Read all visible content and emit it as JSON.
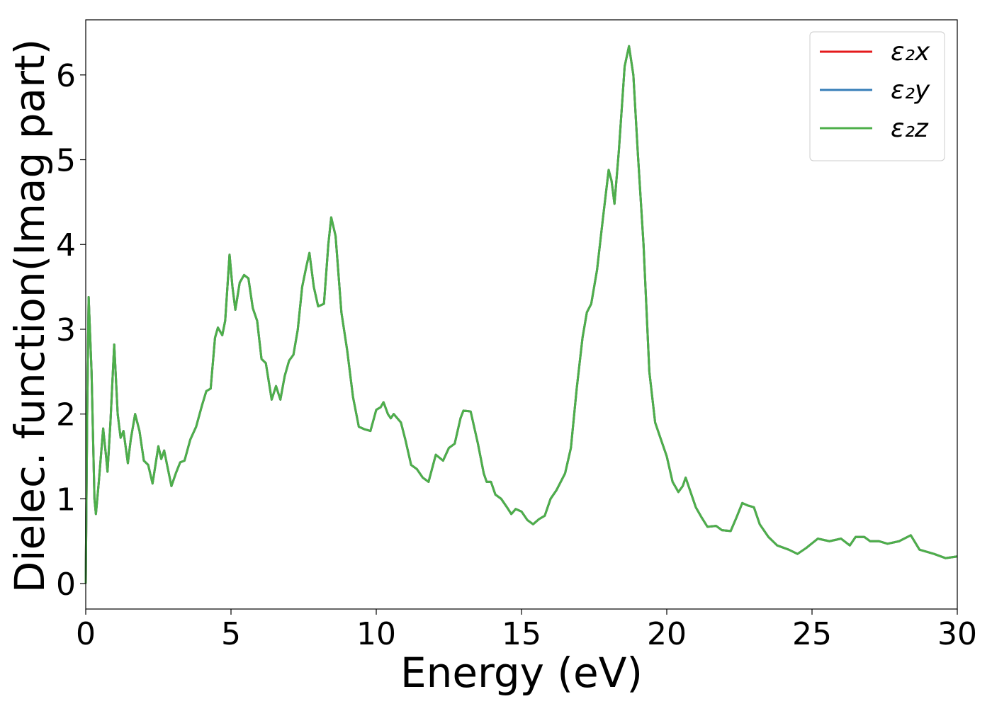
{
  "chart_data": {
    "type": "line",
    "xlabel": "Energy (eV)",
    "ylabel": "Dielec. function(Imag part)",
    "x": [
      0,
      0.05,
      0.1,
      0.2,
      0.3,
      0.35,
      0.45,
      0.6,
      0.7,
      0.75,
      0.85,
      0.98,
      1.1,
      1.2,
      1.3,
      1.45,
      1.55,
      1.7,
      1.85,
      2.0,
      2.15,
      2.3,
      2.4,
      2.5,
      2.6,
      2.7,
      2.8,
      2.95,
      3.1,
      3.25,
      3.4,
      3.6,
      3.8,
      4.0,
      4.15,
      4.3,
      4.45,
      4.55,
      4.7,
      4.8,
      4.95,
      5.05,
      5.15,
      5.3,
      5.45,
      5.6,
      5.75,
      5.9,
      6.05,
      6.2,
      6.4,
      6.55,
      6.7,
      6.85,
      7.0,
      7.15,
      7.3,
      7.45,
      7.6,
      7.7,
      7.85,
      8.0,
      8.2,
      8.35,
      8.45,
      8.6,
      8.8,
      9.0,
      9.2,
      9.4,
      9.6,
      9.8,
      10.0,
      10.15,
      10.25,
      10.4,
      10.5,
      10.6,
      10.85,
      11.0,
      11.2,
      11.4,
      11.6,
      11.8,
      12.05,
      12.3,
      12.5,
      12.7,
      12.9,
      13.0,
      13.25,
      13.5,
      13.7,
      13.8,
      13.95,
      14.1,
      14.3,
      14.5,
      14.65,
      14.8,
      15.0,
      15.2,
      15.4,
      15.6,
      15.8,
      16.0,
      16.2,
      16.5,
      16.7,
      16.9,
      17.1,
      17.25,
      17.4,
      17.6,
      17.8,
      18.0,
      18.1,
      18.2,
      18.35,
      18.55,
      18.7,
      18.85,
      19.0,
      19.2,
      19.4,
      19.6,
      19.8,
      20.0,
      20.2,
      20.4,
      20.55,
      20.65,
      20.8,
      21.0,
      21.2,
      21.4,
      21.7,
      21.9,
      22.2,
      22.4,
      22.6,
      22.8,
      23.0,
      23.2,
      23.5,
      23.8,
      24.2,
      24.5,
      24.8,
      25.2,
      25.6,
      26.0,
      26.3,
      26.5,
      26.8,
      27.0,
      27.3,
      27.6,
      28.0,
      28.4,
      28.7,
      29.2,
      29.6,
      30.0
    ],
    "series": [
      {
        "name": "ε₂x",
        "color": "#e41a1c",
        "values": [
          0,
          2.0,
          3.38,
          2.5,
          1.0,
          0.82,
          1.2,
          1.83,
          1.5,
          1.32,
          1.9,
          2.82,
          2.0,
          1.72,
          1.8,
          1.42,
          1.7,
          2.0,
          1.8,
          1.45,
          1.4,
          1.18,
          1.4,
          1.62,
          1.47,
          1.57,
          1.4,
          1.15,
          1.3,
          1.43,
          1.45,
          1.7,
          1.85,
          2.1,
          2.27,
          2.3,
          2.9,
          3.02,
          2.93,
          3.1,
          3.88,
          3.5,
          3.23,
          3.55,
          3.64,
          3.6,
          3.25,
          3.1,
          2.65,
          2.6,
          2.17,
          2.33,
          2.17,
          2.45,
          2.63,
          2.7,
          3.0,
          3.5,
          3.75,
          3.9,
          3.5,
          3.27,
          3.3,
          4.0,
          4.32,
          4.1,
          3.2,
          2.75,
          2.2,
          1.85,
          1.82,
          1.8,
          2.05,
          2.08,
          2.14,
          2.0,
          1.95,
          2.0,
          1.9,
          1.7,
          1.4,
          1.35,
          1.25,
          1.2,
          1.52,
          1.45,
          1.6,
          1.65,
          1.95,
          2.04,
          2.03,
          1.65,
          1.3,
          1.2,
          1.2,
          1.05,
          1.0,
          0.9,
          0.82,
          0.88,
          0.85,
          0.75,
          0.7,
          0.76,
          0.8,
          1.0,
          1.1,
          1.3,
          1.6,
          2.3,
          2.9,
          3.2,
          3.3,
          3.7,
          4.3,
          4.88,
          4.75,
          4.48,
          5.1,
          6.1,
          6.34,
          6.0,
          5.1,
          4.0,
          2.5,
          1.9,
          1.7,
          1.5,
          1.2,
          1.08,
          1.15,
          1.25,
          1.1,
          0.9,
          0.78,
          0.67,
          0.68,
          0.63,
          0.62,
          0.78,
          0.95,
          0.92,
          0.9,
          0.7,
          0.55,
          0.45,
          0.4,
          0.35,
          0.42,
          0.53,
          0.5,
          0.53,
          0.45,
          0.55,
          0.55,
          0.5,
          0.5,
          0.47,
          0.5,
          0.57,
          0.4,
          0.35,
          0.3,
          0.32
        ]
      },
      {
        "name": "ε₂y",
        "color": "#377eb8",
        "values": [
          0,
          2.0,
          3.38,
          2.5,
          1.0,
          0.82,
          1.2,
          1.83,
          1.5,
          1.32,
          1.9,
          2.82,
          2.0,
          1.72,
          1.8,
          1.42,
          1.7,
          2.0,
          1.8,
          1.45,
          1.4,
          1.18,
          1.4,
          1.62,
          1.47,
          1.57,
          1.4,
          1.15,
          1.3,
          1.43,
          1.45,
          1.7,
          1.85,
          2.1,
          2.27,
          2.3,
          2.9,
          3.02,
          2.93,
          3.1,
          3.88,
          3.5,
          3.23,
          3.55,
          3.64,
          3.6,
          3.25,
          3.1,
          2.65,
          2.6,
          2.17,
          2.33,
          2.17,
          2.45,
          2.63,
          2.7,
          3.0,
          3.5,
          3.75,
          3.9,
          3.5,
          3.27,
          3.3,
          4.0,
          4.32,
          4.1,
          3.2,
          2.75,
          2.2,
          1.85,
          1.82,
          1.8,
          2.05,
          2.08,
          2.14,
          2.0,
          1.95,
          2.0,
          1.9,
          1.7,
          1.4,
          1.35,
          1.25,
          1.2,
          1.52,
          1.45,
          1.6,
          1.65,
          1.95,
          2.04,
          2.03,
          1.65,
          1.3,
          1.2,
          1.2,
          1.05,
          1.0,
          0.9,
          0.82,
          0.88,
          0.85,
          0.75,
          0.7,
          0.76,
          0.8,
          1.0,
          1.1,
          1.3,
          1.6,
          2.3,
          2.9,
          3.2,
          3.3,
          3.7,
          4.3,
          4.88,
          4.75,
          4.48,
          5.1,
          6.1,
          6.34,
          6.0,
          5.1,
          4.0,
          2.5,
          1.9,
          1.7,
          1.5,
          1.2,
          1.08,
          1.15,
          1.25,
          1.1,
          0.9,
          0.78,
          0.67,
          0.68,
          0.63,
          0.62,
          0.78,
          0.95,
          0.92,
          0.9,
          0.7,
          0.55,
          0.45,
          0.4,
          0.35,
          0.42,
          0.53,
          0.5,
          0.53,
          0.45,
          0.55,
          0.55,
          0.5,
          0.5,
          0.47,
          0.5,
          0.57,
          0.4,
          0.35,
          0.3,
          0.32
        ]
      },
      {
        "name": "ε₂z",
        "color": "#4daf4a",
        "values": [
          0,
          2.0,
          3.38,
          2.5,
          1.0,
          0.82,
          1.2,
          1.83,
          1.5,
          1.32,
          1.9,
          2.82,
          2.0,
          1.72,
          1.8,
          1.42,
          1.7,
          2.0,
          1.8,
          1.45,
          1.4,
          1.18,
          1.4,
          1.62,
          1.47,
          1.57,
          1.4,
          1.15,
          1.3,
          1.43,
          1.45,
          1.7,
          1.85,
          2.1,
          2.27,
          2.3,
          2.9,
          3.02,
          2.93,
          3.1,
          3.88,
          3.5,
          3.23,
          3.55,
          3.64,
          3.6,
          3.25,
          3.1,
          2.65,
          2.6,
          2.17,
          2.33,
          2.17,
          2.45,
          2.63,
          2.7,
          3.0,
          3.5,
          3.75,
          3.9,
          3.5,
          3.27,
          3.3,
          4.0,
          4.32,
          4.1,
          3.2,
          2.75,
          2.2,
          1.85,
          1.82,
          1.8,
          2.05,
          2.08,
          2.14,
          2.0,
          1.95,
          2.0,
          1.9,
          1.7,
          1.4,
          1.35,
          1.25,
          1.2,
          1.52,
          1.45,
          1.6,
          1.65,
          1.95,
          2.04,
          2.03,
          1.65,
          1.3,
          1.2,
          1.2,
          1.05,
          1.0,
          0.9,
          0.82,
          0.88,
          0.85,
          0.75,
          0.7,
          0.76,
          0.8,
          1.0,
          1.1,
          1.3,
          1.6,
          2.3,
          2.9,
          3.2,
          3.3,
          3.7,
          4.3,
          4.88,
          4.75,
          4.48,
          5.1,
          6.1,
          6.34,
          6.0,
          5.1,
          4.0,
          2.5,
          1.9,
          1.7,
          1.5,
          1.2,
          1.08,
          1.15,
          1.25,
          1.1,
          0.9,
          0.78,
          0.67,
          0.68,
          0.63,
          0.62,
          0.78,
          0.95,
          0.92,
          0.9,
          0.7,
          0.55,
          0.45,
          0.4,
          0.35,
          0.42,
          0.53,
          0.5,
          0.53,
          0.45,
          0.55,
          0.55,
          0.5,
          0.5,
          0.47,
          0.5,
          0.57,
          0.4,
          0.35,
          0.3,
          0.32
        ]
      }
    ],
    "xlim": [
      0,
      30
    ],
    "xticks": [
      0,
      5,
      10,
      15,
      20,
      25,
      30
    ],
    "ylim": [
      -0.3,
      6.65
    ],
    "yticks": [
      0,
      1,
      2,
      3,
      4,
      5,
      6
    ],
    "grid": false,
    "legend": "upper right"
  }
}
